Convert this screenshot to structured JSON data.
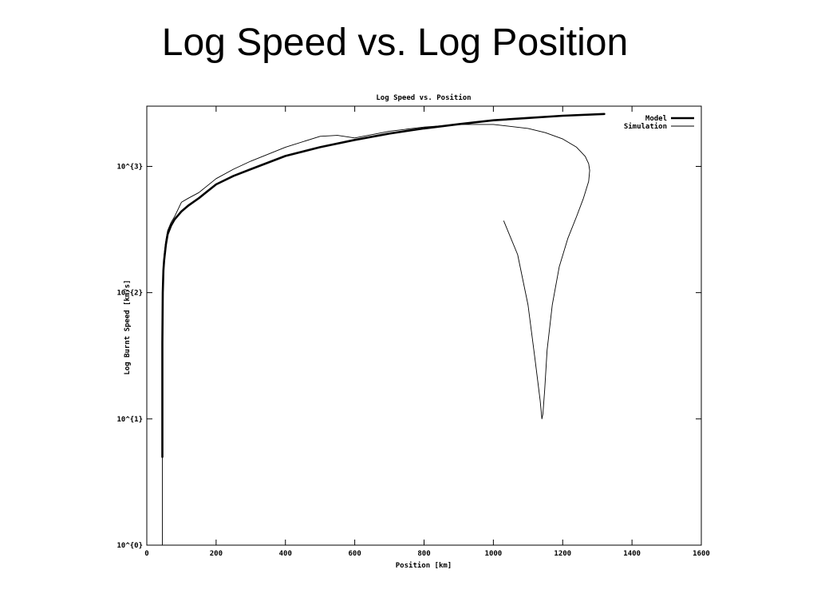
{
  "slide": {
    "title": "Log Speed vs. Log Position"
  },
  "chart_data": {
    "type": "line",
    "title": "Log Speed vs. Position",
    "xlabel": "Position [km]",
    "ylabel": "Log Burnt Speed [km/s]",
    "xlim": [
      0,
      1600
    ],
    "ylim": [
      1,
      3000
    ],
    "yscale": "log",
    "x_ticks": [
      0,
      200,
      400,
      600,
      800,
      1000,
      1200,
      1400,
      1600
    ],
    "x_tick_labels": [
      "0",
      "200",
      "400",
      "600",
      "800",
      "1000",
      "1200",
      "1400",
      "1600"
    ],
    "y_ticks": [
      1,
      10,
      100,
      1000
    ],
    "y_tick_labels": [
      "10^{0}",
      "10^{1}",
      "10^{2}",
      "10^{3}"
    ],
    "grid": false,
    "legend": "top-right",
    "series": [
      {
        "name": "Model",
        "style": "thick",
        "x": [
          45,
          45,
          46,
          48,
          50,
          55,
          60,
          70,
          80,
          100,
          120,
          150,
          200,
          250,
          300,
          400,
          500,
          600,
          700,
          800,
          900,
          1000,
          1100,
          1200,
          1320
        ],
        "y": [
          5,
          40,
          100,
          150,
          180,
          240,
          290,
          340,
          380,
          440,
          490,
          560,
          720,
          840,
          950,
          1210,
          1420,
          1620,
          1820,
          2000,
          2160,
          2320,
          2420,
          2520,
          2600
        ]
      },
      {
        "name": "Simulation",
        "style": "thin",
        "x": [
          45,
          45,
          46,
          48,
          50,
          55,
          60,
          70,
          80,
          100,
          120,
          150,
          200,
          250,
          300,
          400,
          500,
          550,
          600,
          700,
          800,
          900,
          1000,
          1100,
          1150,
          1200,
          1240,
          1265,
          1275,
          1278,
          1275,
          1260,
          1240,
          1215,
          1190,
          1170,
          1155,
          1148,
          1143,
          1140,
          1135,
          1120,
          1100,
          1070,
          1030
        ],
        "y": [
          1,
          60,
          120,
          160,
          200,
          260,
          310,
          360,
          400,
          520,
          560,
          620,
          800,
          950,
          1100,
          1420,
          1730,
          1760,
          1680,
          1900,
          2050,
          2150,
          2150,
          2000,
          1850,
          1650,
          1420,
          1200,
          1050,
          930,
          760,
          560,
          400,
          270,
          160,
          80,
          35,
          17,
          11,
          10,
          14,
          30,
          80,
          200,
          370
        ]
      }
    ]
  }
}
